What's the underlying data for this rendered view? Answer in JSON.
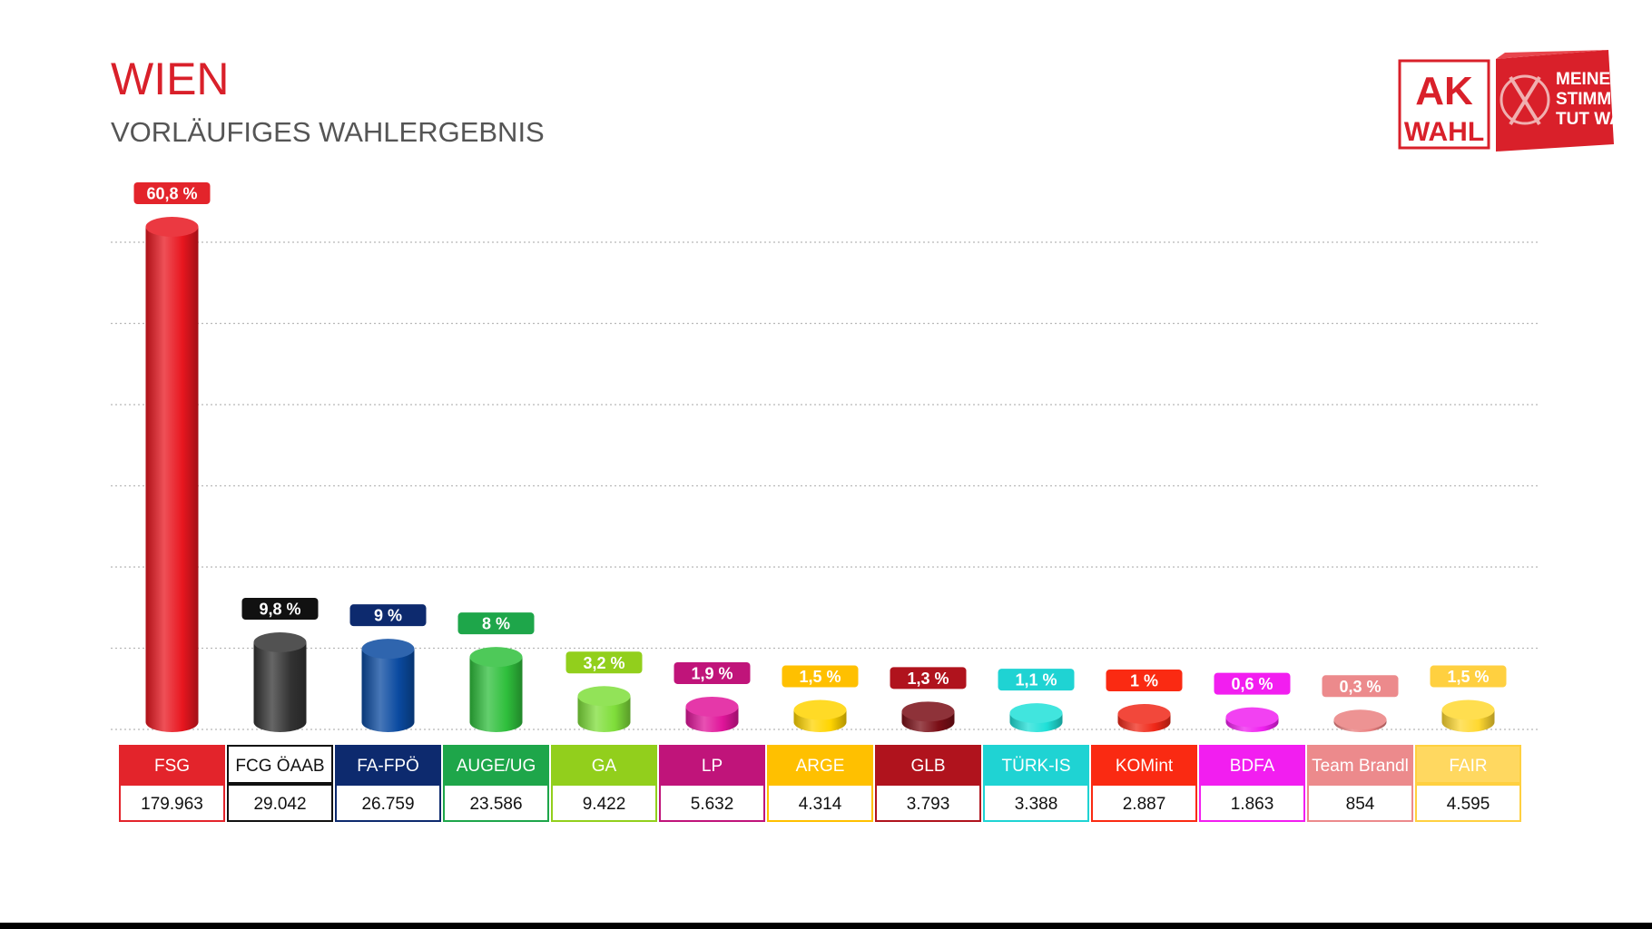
{
  "header": {
    "title": "WIEN",
    "subtitle": "VORLÄUFIGES WAHLERGEBNIS"
  },
  "logo": {
    "line1": "AK",
    "line2": "WAHL",
    "slogan": [
      "MEINE",
      "STIMME",
      "TUT WAS."
    ],
    "color": "#d9202a"
  },
  "chart_data": {
    "type": "bar",
    "title": "",
    "xlabel": "",
    "ylabel": "",
    "grid": true,
    "ylim": [
      0,
      60.8
    ],
    "categories": [
      "FSG",
      "FCG ÖAAB",
      "FA-FPÖ",
      "AUGE/UG",
      "GA",
      "LP",
      "ARGE",
      "GLB",
      "TÜRK-IS",
      "KOMint",
      "BDFA",
      "Team Brandl",
      "FAIR"
    ],
    "percent_labels": [
      "60,8 %",
      "9,8 %",
      "9 %",
      "8 %",
      "3,2 %",
      "1,9 %",
      "1,5 %",
      "1,3 %",
      "1,1 %",
      "1 %",
      "0,6 %",
      "0,3 %",
      "1,5 %"
    ],
    "values": [
      60.8,
      9.8,
      9.0,
      8.0,
      3.2,
      1.9,
      1.5,
      1.3,
      1.1,
      1.0,
      0.6,
      0.3,
      1.5
    ],
    "votes": [
      "179.963",
      "29.042",
      "26.759",
      "23.586",
      "9.422",
      "5.632",
      "4.314",
      "3.793",
      "3.388",
      "2.887",
      "1.863",
      "854",
      "4.595"
    ],
    "colors": [
      "#e3242b",
      "#111111",
      "#0d2a6e",
      "#1ea64a",
      "#92cf1c",
      "#c0147a",
      "#ffc000",
      "#b0131d",
      "#1fd3d3",
      "#fa2a12",
      "#f21ef0",
      "#ec8a8c",
      "#ffd040"
    ],
    "bar_colors": [
      "#e8161f",
      "#333333",
      "#0a4aa0",
      "#2fbf3c",
      "#7fde3a",
      "#e0159a",
      "#ffd400",
      "#7a0e16",
      "#1fe0d8",
      "#f02818",
      "#f020f0",
      "#ea8080",
      "#ffd830"
    ],
    "label_text_colors": [
      "#ffffff",
      "#ffffff",
      "#ffffff",
      "#ffffff",
      "#ffffff",
      "#ffffff",
      "#ffffff",
      "#ffffff",
      "#ffffff",
      "#ffffff",
      "#ffffff",
      "#ffffff",
      "#ffffff"
    ],
    "name_box_fill": [
      "#e3242b",
      "#ffffff",
      "#0d2a6e",
      "#1ea64a",
      "#92cf1c",
      "#c0147a",
      "#ffc000",
      "#b0131d",
      "#1fd3d3",
      "#fa2a12",
      "#f21ef0",
      "#ec8a8c",
      "#ffd860"
    ],
    "name_text_colors": [
      "#ffffff",
      "#111111",
      "#ffffff",
      "#ffffff",
      "#ffffff",
      "#ffffff",
      "#ffffff",
      "#ffffff",
      "#ffffff",
      "#ffffff",
      "#ffffff",
      "#ffffff",
      "#ffffff"
    ]
  }
}
